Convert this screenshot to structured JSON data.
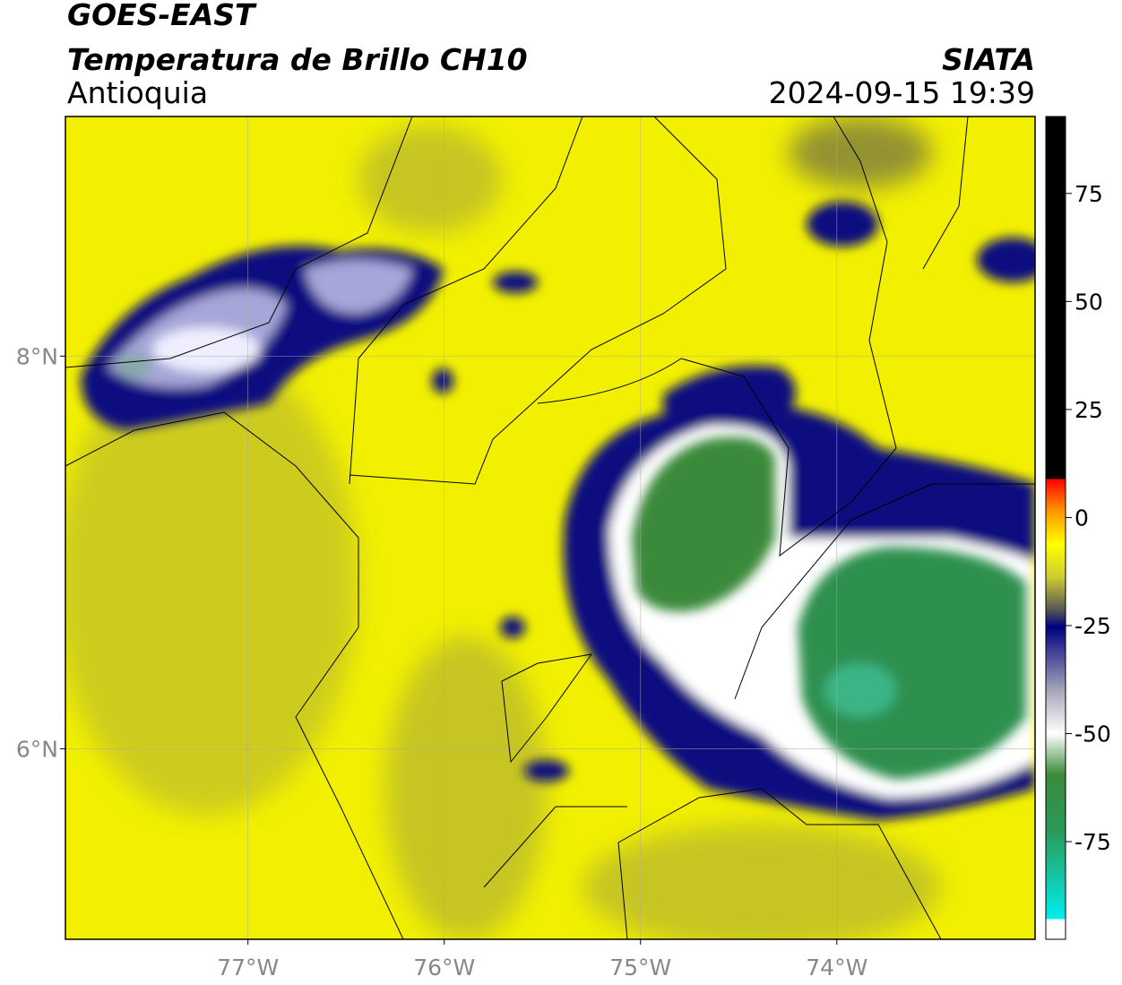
{
  "header": {
    "title": "GOES-EAST",
    "subtitle": "Temperatura de Brillo CH10",
    "region": "Antioquia",
    "source": "SIATA",
    "datetime": "2024-09-15 19:39"
  },
  "map": {
    "xlim": [
      -77.93,
      -72.99
    ],
    "ylim": [
      5.03,
      9.22
    ],
    "xticks": [
      {
        "value": -77,
        "label": "77°W"
      },
      {
        "value": -76,
        "label": "76°W"
      },
      {
        "value": -75,
        "label": "75°W"
      },
      {
        "value": -74,
        "label": "74°W"
      }
    ],
    "yticks": [
      {
        "value": 8,
        "label": "8°N"
      },
      {
        "value": 6,
        "label": "6°N"
      }
    ]
  },
  "colorbar": {
    "lim": [
      -97.6,
      92.8
    ],
    "ticks": [
      75,
      50,
      25,
      0,
      -25,
      -50,
      -75
    ]
  }
}
